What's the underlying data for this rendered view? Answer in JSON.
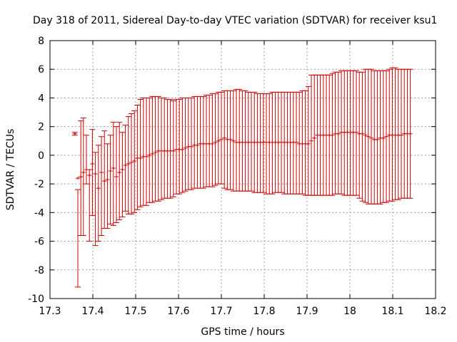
{
  "chart_data": {
    "type": "errorbar",
    "title": "Day 318 of 2011, Sidereal Day-to-day VTEC variation (SDTVAR) for receiver ksu1",
    "xlabel": "GPS time / hours",
    "ylabel": "SDTVAR / TECUs",
    "xlim": [
      17.3,
      18.2
    ],
    "ylim": [
      -10,
      8
    ],
    "xticks": [
      "17.3",
      "17.4",
      "17.5",
      "17.6",
      "17.7",
      "17.8",
      "17.9",
      "18",
      "18.1",
      "18.2"
    ],
    "yticks": [
      "-10",
      "-8",
      "-6",
      "-4",
      "-2",
      "0",
      "2",
      "4",
      "6",
      "8"
    ],
    "grid": true,
    "series_color": "#cc0000",
    "series": [
      {
        "name": "SDTVAR",
        "x": [
          17.358,
          17.365,
          17.372,
          17.378,
          17.385,
          17.392,
          17.399,
          17.406,
          17.413,
          17.42,
          17.427,
          17.434,
          17.441,
          17.448,
          17.455,
          17.462,
          17.469,
          17.476,
          17.483,
          17.49,
          17.497,
          17.504,
          17.511,
          17.518,
          17.525,
          17.532,
          17.539,
          17.546,
          17.553,
          17.56,
          17.567,
          17.574,
          17.581,
          17.588,
          17.595,
          17.602,
          17.609,
          17.616,
          17.623,
          17.63,
          17.637,
          17.644,
          17.651,
          17.658,
          17.665,
          17.672,
          17.679,
          17.686,
          17.693,
          17.7,
          17.707,
          17.714,
          17.721,
          17.728,
          17.735,
          17.742,
          17.749,
          17.756,
          17.763,
          17.77,
          17.777,
          17.784,
          17.791,
          17.798,
          17.805,
          17.812,
          17.819,
          17.826,
          17.833,
          17.84,
          17.847,
          17.854,
          17.861,
          17.868,
          17.875,
          17.882,
          17.889,
          17.896,
          17.903,
          17.91,
          17.917,
          17.924,
          17.931,
          17.938,
          17.945,
          17.952,
          17.959,
          17.966,
          17.973,
          17.98,
          17.987,
          17.994,
          18.001,
          18.008,
          18.015,
          18.022,
          18.029,
          18.036,
          18.043,
          18.05,
          18.057,
          18.064,
          18.071,
          18.078,
          18.085,
          18.092,
          18.099,
          18.106,
          18.113,
          18.12,
          18.127,
          18.134,
          18.141
        ],
        "y": [
          1.5,
          -1.6,
          -1.5,
          -1.2,
          -1.0,
          -1.4,
          -0.6,
          -1.3,
          -2.3,
          -1.2,
          -1.8,
          -1.7,
          -1.1,
          -0.9,
          -1.5,
          -1.2,
          -1.0,
          -0.7,
          -0.6,
          -0.5,
          -0.4,
          -0.2,
          -0.2,
          -0.1,
          -0.1,
          0.0,
          0.1,
          0.2,
          0.3,
          0.3,
          0.3,
          0.3,
          0.3,
          0.3,
          0.4,
          0.4,
          0.4,
          0.5,
          0.6,
          0.6,
          0.7,
          0.7,
          0.8,
          0.8,
          0.8,
          0.8,
          0.8,
          0.9,
          1.0,
          1.1,
          1.2,
          1.1,
          1.1,
          1.0,
          0.9,
          0.9,
          0.9,
          0.9,
          0.9,
          0.9,
          0.9,
          0.9,
          0.9,
          0.9,
          0.9,
          0.9,
          0.9,
          0.9,
          0.9,
          0.9,
          0.9,
          0.9,
          0.9,
          0.9,
          0.9,
          0.8,
          0.8,
          0.8,
          0.8,
          1.0,
          1.2,
          1.4,
          1.4,
          1.4,
          1.4,
          1.4,
          1.4,
          1.5,
          1.5,
          1.6,
          1.6,
          1.6,
          1.6,
          1.6,
          1.6,
          1.5,
          1.5,
          1.4,
          1.3,
          1.2,
          1.1,
          1.1,
          1.2,
          1.2,
          1.3,
          1.4,
          1.4,
          1.4,
          1.4,
          1.4,
          1.5,
          1.5,
          1.5
        ],
        "yerr_low": [
          1.6,
          -9.2,
          -5.6,
          -5.6,
          -2.0,
          -6.0,
          -4.2,
          -6.3,
          -6.0,
          -5.6,
          -5.1,
          -5.1,
          -4.8,
          -4.9,
          -4.7,
          -4.5,
          -4.3,
          -3.9,
          -4.1,
          -4.1,
          -4.0,
          -3.8,
          -3.6,
          -3.5,
          -3.5,
          -3.3,
          -3.3,
          -3.2,
          -3.2,
          -3.1,
          -3.0,
          -3.0,
          -3.0,
          -2.9,
          -2.7,
          -2.7,
          -2.6,
          -2.5,
          -2.4,
          -2.4,
          -2.3,
          -2.3,
          -2.3,
          -2.3,
          -2.2,
          -2.2,
          -2.2,
          -2.1,
          -2.0,
          -2.0,
          -2.3,
          -2.4,
          -2.4,
          -2.5,
          -2.5,
          -2.5,
          -2.5,
          -2.5,
          -2.5,
          -2.5,
          -2.6,
          -2.6,
          -2.6,
          -2.6,
          -2.7,
          -2.7,
          -2.7,
          -2.6,
          -2.6,
          -2.6,
          -2.7,
          -2.7,
          -2.7,
          -2.7,
          -2.7,
          -2.7,
          -2.7,
          -2.8,
          -2.8,
          -2.8,
          -2.8,
          -2.8,
          -2.8,
          -2.8,
          -2.8,
          -2.8,
          -2.8,
          -2.7,
          -2.7,
          -2.7,
          -2.8,
          -2.8,
          -2.8,
          -2.8,
          -2.8,
          -3.0,
          -3.2,
          -3.3,
          -3.4,
          -3.4,
          -3.4,
          -3.4,
          -3.4,
          -3.3,
          -3.3,
          -3.2,
          -3.2,
          -3.1,
          -3.1,
          -3.0,
          -3.0,
          -3.0,
          -3.0
        ],
        "yerr_high": [
          1.4,
          -2.4,
          2.4,
          2.6,
          1.4,
          -1.0,
          1.8,
          0.2,
          0.7,
          1.3,
          1.7,
          0.8,
          1.4,
          2.3,
          2.0,
          2.3,
          1.6,
          2.1,
          2.7,
          2.9,
          3.1,
          3.5,
          3.9,
          4.0,
          4.0,
          4.0,
          4.1,
          4.1,
          4.1,
          4.0,
          4.0,
          3.9,
          3.9,
          3.8,
          3.9,
          3.9,
          4.0,
          4.0,
          4.0,
          4.0,
          4.1,
          4.1,
          4.1,
          4.1,
          4.2,
          4.2,
          4.3,
          4.3,
          4.4,
          4.4,
          4.5,
          4.5,
          4.5,
          4.5,
          4.6,
          4.6,
          4.5,
          4.5,
          4.4,
          4.4,
          4.4,
          4.3,
          4.3,
          4.3,
          4.3,
          4.3,
          4.4,
          4.4,
          4.4,
          4.4,
          4.4,
          4.4,
          4.4,
          4.4,
          4.4,
          4.4,
          4.5,
          4.5,
          4.8,
          5.6,
          5.6,
          5.6,
          5.6,
          5.6,
          5.6,
          5.6,
          5.7,
          5.8,
          5.8,
          5.9,
          5.9,
          5.9,
          5.9,
          5.9,
          5.9,
          5.8,
          5.8,
          6.0,
          6.0,
          6.0,
          5.9,
          5.9,
          5.9,
          5.9,
          5.9,
          6.0,
          6.1,
          6.1,
          6.0,
          6.0,
          6.0,
          6.0,
          6.0
        ]
      }
    ]
  }
}
